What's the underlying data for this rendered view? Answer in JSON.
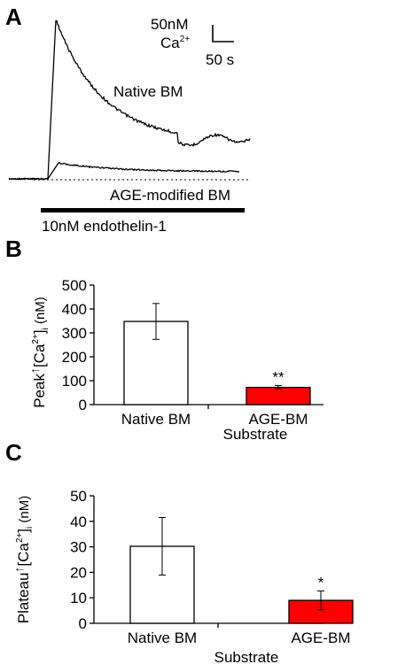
{
  "panel_a": {
    "letter": "A",
    "scale_conc": "50nM",
    "scale_ion": "Ca",
    "scale_ion_charge": "2+",
    "scale_time": "50 s",
    "label_native": "Native BM",
    "label_age": "AGE-modified BM",
    "stimulus_label": "10nM endothelin-1"
  },
  "panel_b": {
    "letter": "B",
    "ylabel_parts": {
      "prefix": "Peak",
      "arrow": "↑",
      "open": "[Ca",
      "sup": "2+",
      "close": "]",
      "sub": "i",
      "unit": " (nM)"
    },
    "xlabel": "Substrate",
    "significance": "**"
  },
  "panel_c": {
    "letter": "C",
    "ylabel_parts": {
      "prefix": "Plateau",
      "arrow": "↑",
      "open": "[Ca",
      "sup": "2+",
      "close": "]",
      "sub": "i",
      "unit": " (nM)"
    },
    "xlabel": "Substrate",
    "significance": "*"
  },
  "colors": {
    "native_bar": "#ffffff",
    "age_bar": "#ff0000",
    "outline": "#000000"
  },
  "chart_data": [
    {
      "type": "line",
      "panel": "A",
      "title": "",
      "xlabel": "",
      "ylabel": "",
      "scale_bar": {
        "y": "50nM Ca2+",
        "x": "50 s"
      },
      "stimulus": "10nM endothelin-1",
      "series": [
        {
          "name": "Native BM",
          "shape": "rapid peak then slow decay to an elevated plateau"
        },
        {
          "name": "AGE-modified BM",
          "shape": "small rise then return near baseline"
        }
      ]
    },
    {
      "type": "bar",
      "panel": "B",
      "categories": [
        "Native BM",
        "AGE-BM"
      ],
      "values": [
        348,
        72
      ],
      "errors": [
        75,
        8
      ],
      "ylim": [
        0,
        500
      ],
      "yticks": [
        0,
        100,
        200,
        300,
        400,
        500
      ],
      "xlabel": "Substrate",
      "ylabel": "Peak ↑[Ca2+]i (nM)",
      "annotations": [
        "",
        "**"
      ]
    },
    {
      "type": "bar",
      "panel": "C",
      "categories": [
        "Native BM",
        "AGE-BM"
      ],
      "values": [
        30.2,
        9
      ],
      "errors": [
        11.3,
        3.7
      ],
      "ylim": [
        0,
        50
      ],
      "yticks": [
        0,
        10,
        20,
        30,
        40,
        50
      ],
      "xlabel": "Substrate",
      "ylabel": "Plateau ↑[Ca2+]i (nM)",
      "annotations": [
        "",
        "*"
      ]
    }
  ]
}
